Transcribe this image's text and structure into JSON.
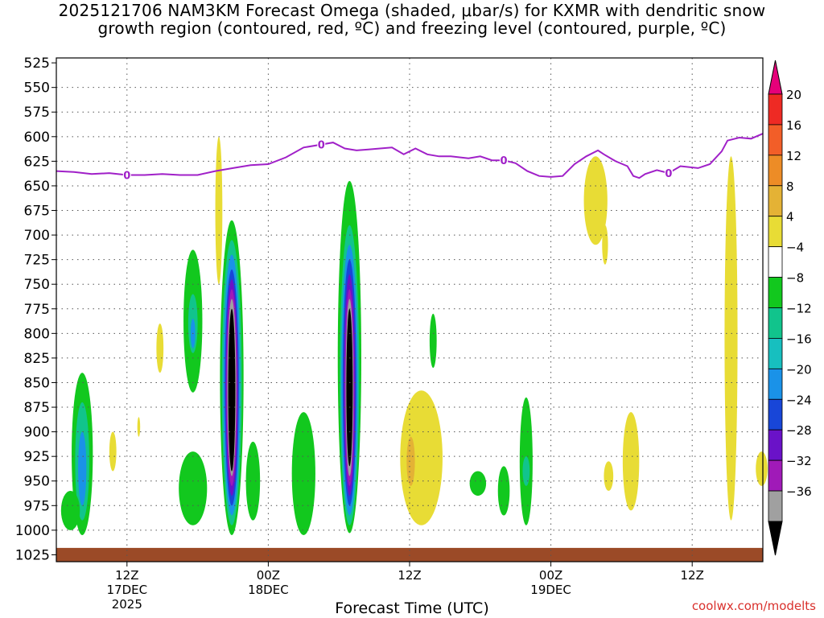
{
  "chart_data": {
    "type": "heatmap",
    "title_line1": "2025121706 NAM3KM Forecast Omega (shaded, μbar/s) for KXMR with dendritic snow",
    "title_line2": "growth region (contoured, red, ºC) and freezing level (contoured, purple, ºC)",
    "xlabel": "Forecast Time (UTC)",
    "ylabel": "",
    "y_axis": {
      "reversed": true,
      "ticks": [
        525,
        550,
        575,
        600,
        625,
        650,
        675,
        700,
        725,
        750,
        775,
        800,
        825,
        850,
        875,
        900,
        925,
        950,
        975,
        1000,
        1025
      ],
      "tick_labels": [
        "525",
        "550",
        "575",
        "600",
        "625",
        "650",
        "675",
        "700",
        "725",
        "750",
        "775",
        "800",
        "825",
        "850",
        "875",
        "900",
        "925",
        "950",
        "975",
        "1000",
        "1025"
      ]
    },
    "x_axis": {
      "range_hours": [
        0,
        60
      ],
      "ticks": [
        {
          "hour": 6,
          "line1": "12Z",
          "line2": "17DEC",
          "line3": "2025"
        },
        {
          "hour": 18,
          "line1": "00Z",
          "line2": "18DEC",
          "line3": ""
        },
        {
          "hour": 30,
          "line1": "12Z",
          "line2": "",
          "line3": ""
        },
        {
          "hour": 42,
          "line1": "00Z",
          "line2": "19DEC",
          "line3": ""
        },
        {
          "hour": 54,
          "line1": "12Z",
          "line2": "",
          "line3": ""
        }
      ]
    },
    "grid": true,
    "colorbar": {
      "labels": [
        "20",
        "16",
        "12",
        "8",
        "4",
        "−4",
        "−8",
        "−12",
        "−16",
        "−20",
        "−24",
        "−28",
        "−32",
        "−36"
      ],
      "colors": [
        "#e6007a",
        "#ee2a24",
        "#f25e28",
        "#ed8c26",
        "#e4b235",
        "#e8dc35",
        "#ffffff",
        "#12c81e",
        "#11c48c",
        "#17bfbf",
        "#1a92e8",
        "#1846d8",
        "#6a12c8",
        "#a01ab8",
        "#a0a0a0",
        "#000000"
      ]
    },
    "freezing_level": {
      "contour_label": "0",
      "color": "#a020c8",
      "points": [
        [
          0,
          635
        ],
        [
          1.5,
          636
        ],
        [
          3,
          638
        ],
        [
          4.5,
          637
        ],
        [
          6,
          639
        ],
        [
          7.5,
          639
        ],
        [
          9,
          638
        ],
        [
          10.5,
          639
        ],
        [
          12,
          639
        ],
        [
          13.5,
          635
        ],
        [
          15,
          632
        ],
        [
          16.5,
          629
        ],
        [
          18,
          628
        ],
        [
          19.5,
          621
        ],
        [
          21,
          611
        ],
        [
          22.5,
          608
        ],
        [
          23.5,
          606
        ],
        [
          24.5,
          612
        ],
        [
          25.5,
          614
        ],
        [
          26.5,
          613
        ],
        [
          27.5,
          612
        ],
        [
          28.5,
          611
        ],
        [
          29.5,
          618
        ],
        [
          30.5,
          612
        ],
        [
          31.5,
          618
        ],
        [
          32.5,
          620
        ],
        [
          33.5,
          620
        ],
        [
          35,
          622
        ],
        [
          36,
          620
        ],
        [
          37,
          624
        ],
        [
          38,
          624
        ],
        [
          39,
          627
        ],
        [
          40,
          635
        ],
        [
          41,
          640
        ],
        [
          42,
          641
        ],
        [
          43,
          640
        ],
        [
          44,
          628
        ],
        [
          45,
          620
        ],
        [
          46,
          614
        ],
        [
          46.5,
          618
        ],
        [
          47.5,
          625
        ],
        [
          48.5,
          630
        ],
        [
          49,
          640
        ],
        [
          49.5,
          642
        ],
        [
          50,
          638
        ],
        [
          51,
          634
        ],
        [
          52,
          637
        ],
        [
          53,
          630
        ],
        [
          54.5,
          632
        ],
        [
          55.5,
          628
        ],
        [
          56.5,
          615
        ],
        [
          57,
          604
        ],
        [
          58,
          601
        ],
        [
          59,
          602
        ],
        [
          60,
          597
        ]
      ],
      "labels_at_hours": [
        6,
        22.5,
        38,
        52
      ]
    },
    "omega_regions": [
      {
        "value": -8,
        "hour": 2.2,
        "p_top": 840,
        "p_bottom": 1005,
        "halfwidth_h": 0.9
      },
      {
        "value": -12,
        "hour": 2.2,
        "p_top": 870,
        "p_bottom": 990,
        "halfwidth_h": 0.6
      },
      {
        "value": -16,
        "hour": 2.2,
        "p_top": 900,
        "p_bottom": 975,
        "halfwidth_h": 0.35
      },
      {
        "value": -4,
        "hour": 1.2,
        "p_top": 960,
        "p_bottom": 1000,
        "halfwidth_h": 0.8
      },
      {
        "value": 4,
        "hour": 4.8,
        "p_top": 900,
        "p_bottom": 940,
        "halfwidth_h": 0.3
      },
      {
        "value": 4,
        "hour": 7.0,
        "p_top": 885,
        "p_bottom": 905,
        "halfwidth_h": 0.12
      },
      {
        "value": 4,
        "hour": 8.8,
        "p_top": 790,
        "p_bottom": 840,
        "halfwidth_h": 0.3
      },
      {
        "value": -8,
        "hour": 11.6,
        "p_top": 715,
        "p_bottom": 860,
        "halfwidth_h": 0.8
      },
      {
        "value": -12,
        "hour": 11.6,
        "p_top": 760,
        "p_bottom": 820,
        "halfwidth_h": 0.4
      },
      {
        "value": -16,
        "hour": 11.6,
        "p_top": 785,
        "p_bottom": 815,
        "halfwidth_h": 0.2
      },
      {
        "value": -8,
        "hour": 11.6,
        "p_top": 920,
        "p_bottom": 995,
        "halfwidth_h": 1.2
      },
      {
        "value": 4,
        "hour": 13.8,
        "p_top": 600,
        "p_bottom": 750,
        "halfwidth_h": 0.3
      },
      {
        "value": -8,
        "hour": 14.9,
        "p_top": 685,
        "p_bottom": 1005,
        "halfwidth_h": 1.0
      },
      {
        "value": -12,
        "hour": 14.9,
        "p_top": 705,
        "p_bottom": 995,
        "halfwidth_h": 0.85
      },
      {
        "value": -16,
        "hour": 14.9,
        "p_top": 720,
        "p_bottom": 985,
        "halfwidth_h": 0.72
      },
      {
        "value": -20,
        "hour": 14.9,
        "p_top": 735,
        "p_bottom": 975,
        "halfwidth_h": 0.6
      },
      {
        "value": -24,
        "hour": 14.9,
        "p_top": 745,
        "p_bottom": 965,
        "halfwidth_h": 0.52
      },
      {
        "value": -28,
        "hour": 14.9,
        "p_top": 755,
        "p_bottom": 955,
        "halfwidth_h": 0.45
      },
      {
        "value": -32,
        "hour": 14.9,
        "p_top": 765,
        "p_bottom": 945,
        "halfwidth_h": 0.38
      },
      {
        "value": -36,
        "hour": 14.9,
        "p_top": 775,
        "p_bottom": 940,
        "halfwidth_h": 0.3
      },
      {
        "value": -8,
        "hour": 16.7,
        "p_top": 910,
        "p_bottom": 990,
        "halfwidth_h": 0.6
      },
      {
        "value": -8,
        "hour": 21.0,
        "p_top": 880,
        "p_bottom": 1005,
        "halfwidth_h": 1.0
      },
      {
        "value": -8,
        "hour": 24.9,
        "p_top": 645,
        "p_bottom": 1003,
        "halfwidth_h": 1.0
      },
      {
        "value": -12,
        "hour": 24.9,
        "p_top": 690,
        "p_bottom": 995,
        "halfwidth_h": 0.82
      },
      {
        "value": -16,
        "hour": 24.9,
        "p_top": 710,
        "p_bottom": 985,
        "halfwidth_h": 0.7
      },
      {
        "value": -20,
        "hour": 24.9,
        "p_top": 725,
        "p_bottom": 975,
        "halfwidth_h": 0.58
      },
      {
        "value": -24,
        "hour": 24.9,
        "p_top": 740,
        "p_bottom": 965,
        "halfwidth_h": 0.48
      },
      {
        "value": -28,
        "hour": 24.9,
        "p_top": 755,
        "p_bottom": 955,
        "halfwidth_h": 0.4
      },
      {
        "value": -32,
        "hour": 24.9,
        "p_top": 765,
        "p_bottom": 945,
        "halfwidth_h": 0.33
      },
      {
        "value": -36,
        "hour": 24.9,
        "p_top": 775,
        "p_bottom": 935,
        "halfwidth_h": 0.27
      },
      {
        "value": 4,
        "hour": 31.0,
        "p_top": 858,
        "p_bottom": 995,
        "halfwidth_h": 1.8
      },
      {
        "value": 8,
        "hour": 30.1,
        "p_top": 905,
        "p_bottom": 955,
        "halfwidth_h": 0.35
      },
      {
        "value": -8,
        "hour": 32.0,
        "p_top": 780,
        "p_bottom": 835,
        "halfwidth_h": 0.3
      },
      {
        "value": -8,
        "hour": 35.8,
        "p_top": 940,
        "p_bottom": 965,
        "halfwidth_h": 0.7
      },
      {
        "value": -8,
        "hour": 38.0,
        "p_top": 935,
        "p_bottom": 985,
        "halfwidth_h": 0.5
      },
      {
        "value": -8,
        "hour": 39.9,
        "p_top": 865,
        "p_bottom": 995,
        "halfwidth_h": 0.55
      },
      {
        "value": -12,
        "hour": 39.9,
        "p_top": 925,
        "p_bottom": 955,
        "halfwidth_h": 0.3
      },
      {
        "value": 4,
        "hour": 45.8,
        "p_top": 620,
        "p_bottom": 710,
        "halfwidth_h": 1.0
      },
      {
        "value": 4,
        "hour": 46.6,
        "p_top": 690,
        "p_bottom": 730,
        "halfwidth_h": 0.25
      },
      {
        "value": 4,
        "hour": 46.9,
        "p_top": 930,
        "p_bottom": 960,
        "halfwidth_h": 0.4
      },
      {
        "value": 4,
        "hour": 48.8,
        "p_top": 880,
        "p_bottom": 980,
        "halfwidth_h": 0.7
      },
      {
        "value": 4,
        "hour": 57.3,
        "p_top": 620,
        "p_bottom": 990,
        "halfwidth_h": 0.55
      },
      {
        "value": 4,
        "hour": 59.9,
        "p_top": 920,
        "p_bottom": 955,
        "halfwidth_h": 0.5
      }
    ],
    "terrain_color": "#9b4a27"
  },
  "watermark": "coolwx.com/modelts"
}
